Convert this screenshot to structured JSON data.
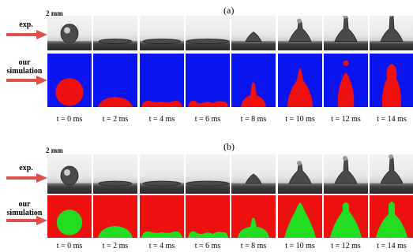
{
  "panels": [
    {
      "id": "a",
      "label": "(a)",
      "scale_bar": "2 mm",
      "exp_label": "exp.",
      "sim_label_line1": "our",
      "sim_label_line2": "simulation",
      "times": [
        "t = 0 ms",
        "t = 2 ms",
        "t = 4 ms",
        "t = 6 ms",
        "t = 8 ms",
        "t = 10 ms",
        "t = 12 ms",
        "t = 14 ms"
      ],
      "colors": {
        "background": "#0a14ee",
        "droplet": "#ee0f0f"
      }
    },
    {
      "id": "b",
      "label": "(b)",
      "scale_bar": "2 mm",
      "exp_label": "exp.",
      "sim_label_line1": "our",
      "sim_label_line2": "simulation",
      "times": [
        "t = 0 ms",
        "t = 2 ms",
        "t = 4 ms",
        "t = 6 ms",
        "t = 8 ms",
        "t = 10 ms",
        "t = 12 ms",
        "t = 14 ms"
      ],
      "colors": {
        "background": "#ee0f0f",
        "droplet": "#22dd22"
      }
    }
  ],
  "colors": {
    "arrow": "#e0504a"
  }
}
